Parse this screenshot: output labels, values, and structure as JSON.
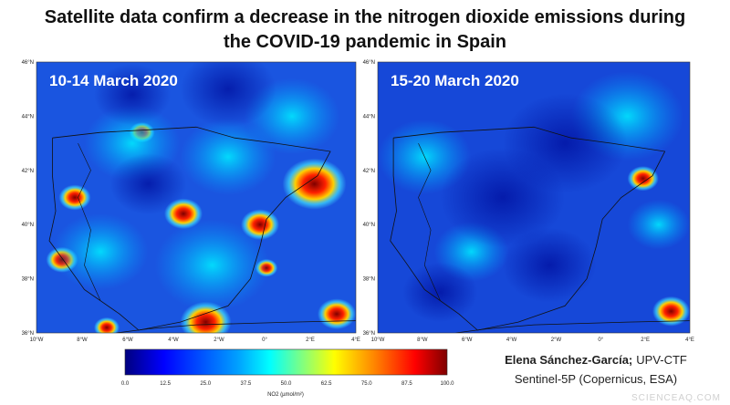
{
  "title": {
    "line1": "Satellite data confirm a decrease in the nitrogen dioxide emissions during",
    "line2": "the COVID-19 pandemic in Spain"
  },
  "panels": [
    {
      "label": "10-14 March 2020"
    },
    {
      "label": "15-20 March 2020"
    }
  ],
  "lat_labels": [
    "46°N",
    "44°N",
    "42°N",
    "40°N",
    "38°N",
    "36°N"
  ],
  "lon_labels": [
    "10°W",
    "8°W",
    "6°W",
    "4°W",
    "2°W",
    "0°",
    "2°E",
    "4°E"
  ],
  "colorbar": {
    "ticks": [
      "0.0",
      "12.5",
      "25.0",
      "37.5",
      "50.0",
      "62.5",
      "75.0",
      "87.5",
      "100.0"
    ],
    "label": "NO2 (µmol/m²)"
  },
  "credits": {
    "author": "Elena Sánchez-García;",
    "affiliation": "UPV-CTF",
    "source": "Sentinel-5P (Copernicus, ESA)"
  },
  "watermark": "SCIENCEAQ.COM"
}
